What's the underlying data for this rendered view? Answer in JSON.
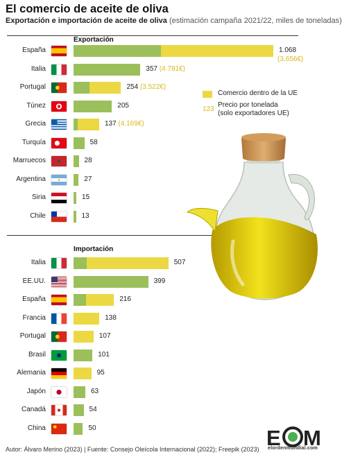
{
  "header": {
    "title": "El comercio de aceite de oliva",
    "subtitle_bold": "Exportación e importación de aceite de oliva",
    "subtitle_note": "(estimación campaña 2021/22, miles de toneladas)"
  },
  "legend": {
    "eu_trade": "Comercio dentro de la UE",
    "sample_number": "123",
    "price_line1": "Precio por tonelada",
    "price_line2": "(solo exportadores UE)"
  },
  "footer": {
    "text": "Autor: Álvaro Merino (2023) | Fuente: Consejo Oleícola Internacional (2022); Freepik (2023)"
  },
  "logo": {
    "mark": "EOM",
    "site": "elordenmundial.com"
  },
  "colors": {
    "outside_eu": "#9bbf5a",
    "inside_eu": "#ecd842",
    "price": "#d8b81a"
  },
  "chart_data": [
    {
      "type": "bar",
      "title": "Exportación",
      "xlim": [
        0,
        1068
      ],
      "categories": [
        "España",
        "Italia",
        "Portugal",
        "Túnez",
        "Grecia",
        "Turquía",
        "Marruecos",
        "Argentina",
        "Siria",
        "Chile"
      ],
      "flags": [
        "flag-spain-icon",
        "flag-italy-icon",
        "flag-portugal-icon",
        "flag-tunisia-icon",
        "flag-greece-icon",
        "flag-turkey-icon",
        "flag-morocco-icon",
        "flag-argentina-icon",
        "flag-syria-icon",
        "flag-chile-icon"
      ],
      "labels": [
        "1.068",
        "357",
        "254",
        "205",
        "137",
        "58",
        "28",
        "27",
        "15",
        "13"
      ],
      "totals": [
        1068,
        357,
        254,
        205,
        137,
        58,
        28,
        27,
        15,
        13
      ],
      "inside_eu": [
        600,
        0,
        170,
        0,
        113,
        0,
        0,
        0,
        0,
        0
      ],
      "prices": [
        "(3.656€)",
        "(4.781€)",
        "(3.522€)",
        "",
        "(4.169€)",
        "",
        "",
        "",
        "",
        ""
      ]
    },
    {
      "type": "bar",
      "title": "Importación",
      "xlim": [
        0,
        1068
      ],
      "categories": [
        "Italia",
        "EE.UU.",
        "España",
        "Francia",
        "Portugal",
        "Brasil",
        "Alemania",
        "Japón",
        "Canadá",
        "China"
      ],
      "flags": [
        "flag-italy-icon",
        "flag-usa-icon",
        "flag-spain-icon",
        "flag-france-icon",
        "flag-portugal-icon",
        "flag-brazil-icon",
        "flag-germany-icon",
        "flag-japan-icon",
        "flag-canada-icon",
        "flag-china-icon"
      ],
      "labels": [
        "507",
        "399",
        "216",
        "138",
        "107",
        "101",
        "95",
        "63",
        "54",
        "50"
      ],
      "totals": [
        507,
        399,
        216,
        138,
        107,
        101,
        95,
        63,
        54,
        50
      ],
      "inside_eu": [
        438,
        0,
        151,
        138,
        107,
        0,
        95,
        0,
        0,
        0
      ],
      "prices": [
        "",
        "",
        "",
        "",
        "",
        "",
        "",
        "",
        "",
        ""
      ]
    }
  ]
}
